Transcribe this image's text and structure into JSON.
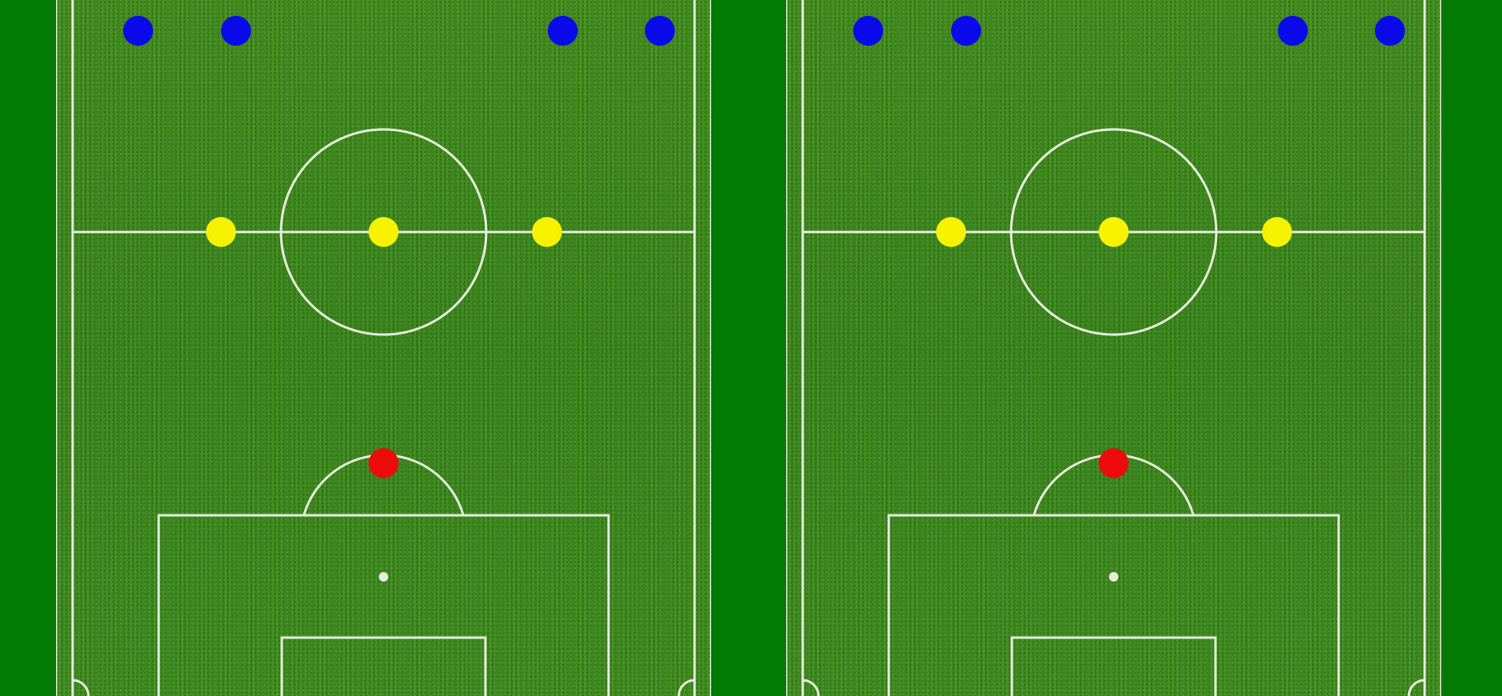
{
  "colors": {
    "background": "#027a04",
    "lines": "#e8eedf",
    "attacker": "#0a0aeb",
    "midfielder": "#f7f200",
    "goalkeeper": "#ef0b0b"
  },
  "pitches": [
    {
      "name": "left",
      "players": [
        {
          "role": "attacker"
        },
        {
          "role": "attacker"
        },
        {
          "role": "attacker"
        },
        {
          "role": "attacker"
        },
        {
          "role": "midfielder"
        },
        {
          "role": "midfielder"
        },
        {
          "role": "midfielder"
        },
        {
          "role": "goalkeeper"
        }
      ]
    },
    {
      "name": "right",
      "players": [
        {
          "role": "attacker"
        },
        {
          "role": "attacker"
        },
        {
          "role": "attacker"
        },
        {
          "role": "attacker"
        },
        {
          "role": "midfielder"
        },
        {
          "role": "midfielder"
        },
        {
          "role": "midfielder"
        },
        {
          "role": "goalkeeper"
        }
      ]
    }
  ]
}
